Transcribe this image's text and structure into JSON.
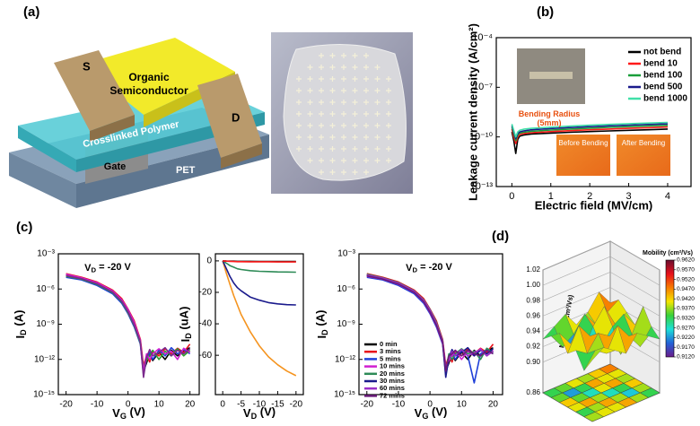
{
  "panel_labels": [
    "(a)",
    "(b)",
    "(c)",
    "(d)"
  ],
  "schematic": {
    "source": "S",
    "drain": "D",
    "semiconductor": [
      "Organic",
      "Semiconductor"
    ],
    "dielectric": "Crosslinked Polymer",
    "gate": "Gate",
    "substrate": "PET"
  },
  "chart_data": [
    {
      "type": "line",
      "xlabel": "Electric field (MV/cm)",
      "ylabel": "Leakage current density (A/cm²)",
      "ylog": true,
      "xlim": [
        -0.4,
        4.6
      ],
      "xticks": [
        0,
        1,
        2,
        3,
        4
      ],
      "ylim": [
        1e-13,
        0.0001
      ],
      "yticks": [
        {
          "value": 0.0001,
          "label": "10⁻⁴"
        },
        {
          "value": 1e-07,
          "label": "10⁻⁷"
        },
        {
          "value": 1e-10,
          "label": "10⁻¹⁰"
        },
        {
          "value": 1e-13,
          "label": "10⁻¹³"
        }
      ],
      "legend": "upper right",
      "inset_texts": {
        "radius": [
          "Bending Radius",
          "(5mm)"
        ],
        "before": "Before Bending",
        "after": "After Bending"
      },
      "x": [
        0,
        0.05,
        0.1,
        0.15,
        0.2,
        0.3,
        0.5,
        1,
        1.5,
        2,
        2.5,
        3,
        3.5,
        4
      ],
      "series": [
        {
          "name": "not bend",
          "color": "#000000",
          "values": [
            2e-10,
            6e-11,
            1e-11,
            7e-11,
            1.1e-10,
            1.3e-10,
            1.5e-10,
            1.7e-10,
            1.9e-10,
            2.1e-10,
            2.3e-10,
            2.5e-10,
            2.7e-10,
            3e-10
          ]
        },
        {
          "name": "bend 10",
          "color": "#ff1a1a",
          "values": [
            3e-10,
            1e-10,
            4e-11,
            1e-10,
            1.4e-10,
            1.6e-10,
            1.8e-10,
            2.1e-10,
            2.4e-10,
            2.7e-10,
            3e-10,
            3.3e-10,
            3.6e-10,
            4e-10
          ]
        },
        {
          "name": "bend 100",
          "color": "#1a9e3a",
          "values": [
            4e-10,
            1.5e-10,
            6e-11,
            1.3e-10,
            1.7e-10,
            1.9e-10,
            2.2e-10,
            2.6e-10,
            3e-10,
            3.4e-10,
            3.8e-10,
            4.2e-10,
            4.6e-10,
            5e-10
          ]
        },
        {
          "name": "bend 500",
          "color": "#1a1a8c",
          "values": [
            5e-10,
            2e-10,
            8e-11,
            1.6e-10,
            2e-10,
            2.3e-10,
            2.7e-10,
            3.2e-10,
            3.7e-10,
            4.2e-10,
            4.7e-10,
            5.2e-10,
            5.7e-10,
            6.2e-10
          ]
        },
        {
          "name": "bend 1000",
          "color": "#40e0a8",
          "values": [
            6e-10,
            2.5e-10,
            1e-10,
            2e-10,
            2.5e-10,
            2.9e-10,
            3.3e-10,
            3.9e-10,
            4.5e-10,
            5.1e-10,
            5.7e-10,
            6.3e-10,
            6.9e-10,
            7.5e-10
          ]
        }
      ]
    },
    {
      "type": "line",
      "xlabel": [
        "V",
        "G",
        " (V)"
      ],
      "ylabel": [
        "I",
        "D",
        " (A)"
      ],
      "annotation": [
        "V",
        "D",
        " = -20 V"
      ],
      "ylog": true,
      "xlim": [
        -22.5,
        23
      ],
      "xticks": [
        -20,
        -10,
        0,
        10,
        20
      ],
      "ylim": [
        1e-15,
        0.001
      ],
      "yticks": [
        {
          "value": 0.001,
          "label": "10⁻³"
        },
        {
          "value": 1e-06,
          "label": "10⁻⁶"
        },
        {
          "value": 1e-09,
          "label": "10⁻⁹"
        },
        {
          "value": 1e-12,
          "label": "10⁻¹²"
        },
        {
          "value": 1e-15,
          "label": "10⁻¹⁵"
        }
      ],
      "x": [
        -20,
        -15,
        -10,
        -5,
        -2,
        0,
        2,
        4,
        5,
        6,
        7,
        8,
        10,
        12,
        14,
        16,
        18,
        20
      ],
      "series": [
        {
          "color": "#000000",
          "values": [
            1.5e-05,
            8e-06,
            3e-06,
            6e-07,
            1e-07,
            1.5e-08,
            1e-09,
            3e-11,
            1e-13,
            5e-13,
            3e-12,
            8e-13,
            4e-12,
            1e-12,
            6e-12,
            2e-12,
            5e-12,
            1e-11
          ]
        },
        {
          "color": "#e8101a",
          "values": [
            2e-05,
            1e-05,
            4e-06,
            8e-07,
            1.5e-07,
            2e-08,
            2e-09,
            5e-11,
            3e-13,
            2e-12,
            6e-13,
            5e-12,
            2e-12,
            8e-12,
            3e-12,
            9e-12,
            4e-12,
            2e-11
          ]
        },
        {
          "color": "#1f3fd8",
          "values": [
            1e-05,
            6e-06,
            2e-06,
            4e-07,
            6e-08,
            8e-09,
            6e-10,
            2e-11,
            5e-14,
            1e-12,
            4e-12,
            1e-12,
            6e-12,
            2e-12,
            1e-11,
            3e-12,
            7e-12,
            3e-12
          ]
        },
        {
          "color": "#2ca02c",
          "values": [
            1.2e-05,
            7e-06,
            2.5e-06,
            5e-07,
            8e-08,
            1e-08,
            8e-10,
            2.5e-11,
            2e-13,
            8e-13,
            2e-12,
            6e-12,
            1e-12,
            5e-12,
            2e-12,
            8e-12,
            2e-12,
            6e-12
          ]
        },
        {
          "color": "#d01fd0",
          "values": [
            1.8e-05,
            9e-06,
            3.5e-06,
            7e-07,
            1.2e-07,
            1.8e-08,
            1.5e-09,
            4e-11,
            1e-13,
            3e-12,
            1e-12,
            3e-12,
            8e-12,
            3e-12,
            5e-12,
            1e-12,
            9e-12,
            4e-12
          ]
        },
        {
          "color": "#7b2a8c",
          "values": [
            1.4e-05,
            7.5e-06,
            2.8e-06,
            5.5e-07,
            9e-08,
            1.2e-08,
            9e-10,
            3e-11,
            3e-14,
            1.5e-12,
            7e-12,
            2e-12,
            4e-12,
            1e-11,
            2e-12,
            6e-12,
            3e-12,
            8e-12
          ]
        }
      ]
    },
    {
      "type": "line",
      "xlabel": [
        "V",
        "D",
        " (V)"
      ],
      "ylabel": [
        "I",
        "D",
        " (uA)"
      ],
      "ylog": false,
      "xlim": [
        2,
        -22
      ],
      "xticks": [
        0,
        -5,
        -10,
        -15,
        -20
      ],
      "ylim": [
        -85,
        4.5
      ],
      "yticks": [
        0,
        -20,
        -40,
        -60
      ],
      "x": [
        0,
        -1,
        -2,
        -3,
        -4,
        -5,
        -7.5,
        -10,
        -12.5,
        -15,
        -17.5,
        -20
      ],
      "series": [
        {
          "color": "#f5941f",
          "values": [
            0,
            -8,
            -15,
            -22,
            -28,
            -34,
            -45,
            -54,
            -61,
            -66,
            -70,
            -73
          ]
        },
        {
          "color": "#1a1a8c",
          "values": [
            0,
            -5,
            -10,
            -14,
            -17,
            -19,
            -23,
            -25,
            -26.5,
            -27.3,
            -27.8,
            -28
          ]
        },
        {
          "color": "#2e8b57",
          "values": [
            0,
            -1.5,
            -3,
            -4,
            -5,
            -5.5,
            -6.2,
            -6.6,
            -6.8,
            -7,
            -7.1,
            -7.2
          ]
        },
        {
          "color": "#000000",
          "values": [
            0,
            -0.1,
            -0.2,
            -0.2,
            -0.3,
            -0.3,
            -0.3,
            -0.4,
            -0.4,
            -0.4,
            -0.4,
            -0.4
          ]
        },
        {
          "color": "#ff1a1a",
          "values": [
            0,
            -0.2,
            -0.3,
            -0.4,
            -0.5,
            -0.5,
            -0.6,
            -0.6,
            -0.6,
            -0.7,
            -0.7,
            -0.7
          ]
        }
      ]
    },
    {
      "type": "line",
      "xlabel": [
        "V",
        "G",
        " (V)"
      ],
      "ylabel": [
        "I",
        "D",
        " (A)"
      ],
      "annotation": [
        "V",
        "D",
        " = -20 V"
      ],
      "ylog": true,
      "xlim": [
        -22.5,
        23
      ],
      "xticks": [
        -20,
        -10,
        0,
        10,
        20
      ],
      "ylim": [
        1e-15,
        0.001
      ],
      "yticks": [
        {
          "value": 0.001,
          "label": "10⁻³"
        },
        {
          "value": 1e-06,
          "label": "10⁻⁶"
        },
        {
          "value": 1e-09,
          "label": "10⁻⁹"
        },
        {
          "value": 1e-12,
          "label": "10⁻¹²"
        },
        {
          "value": 1e-15,
          "label": "10⁻¹⁵"
        }
      ],
      "legend": "lower left",
      "x": [
        -20,
        -15,
        -10,
        -5,
        -2,
        0,
        2,
        4,
        5,
        6,
        7,
        8,
        10,
        12,
        14,
        16,
        18,
        20
      ],
      "series": [
        {
          "name": "0 min",
          "color": "#000000",
          "values": [
            1.5e-05,
            8e-06,
            3e-06,
            6e-07,
            1e-07,
            1.5e-08,
            1e-09,
            3e-11,
            1e-13,
            5e-13,
            3e-12,
            8e-13,
            4e-12,
            1e-12,
            6e-12,
            2e-12,
            5e-12,
            1e-11
          ]
        },
        {
          "name": "3 mins",
          "color": "#e8101a",
          "values": [
            2e-05,
            1e-05,
            4e-06,
            8e-07,
            1.5e-07,
            2e-08,
            2e-09,
            5e-11,
            3e-13,
            2e-12,
            6e-13,
            5e-12,
            2e-12,
            8e-12,
            3e-12,
            9e-12,
            4e-12,
            2e-11
          ]
        },
        {
          "name": "5 mins",
          "color": "#1f3fd8",
          "values": [
            1e-05,
            6e-06,
            2e-06,
            4e-07,
            6e-08,
            8e-09,
            6e-10,
            2e-11,
            5e-14,
            1e-12,
            4e-12,
            1e-12,
            6e-12,
            2e-12,
            1e-14,
            3e-12,
            7e-12,
            3e-12
          ]
        },
        {
          "name": "10 mins",
          "color": "#d01fd0",
          "values": [
            1.2e-05,
            7e-06,
            2.5e-06,
            5e-07,
            8e-08,
            1e-08,
            8e-10,
            2.5e-11,
            2e-13,
            8e-13,
            2e-12,
            6e-12,
            1e-12,
            5e-12,
            2e-12,
            8e-12,
            2e-12,
            6e-12
          ]
        },
        {
          "name": "20 mins",
          "color": "#2e8b57",
          "values": [
            1.8e-05,
            9e-06,
            3.5e-06,
            7e-07,
            1.2e-07,
            1.8e-08,
            1.5e-09,
            4e-11,
            1e-13,
            3e-12,
            1e-12,
            3e-12,
            8e-12,
            3e-12,
            5e-12,
            1e-12,
            9e-12,
            4e-12
          ]
        },
        {
          "name": "30 mins",
          "color": "#1a1a8c",
          "values": [
            1.4e-05,
            7.5e-06,
            2.8e-06,
            5.5e-07,
            9e-08,
            1.2e-08,
            9e-10,
            3e-11,
            3e-14,
            1.5e-12,
            7e-12,
            2e-12,
            4e-12,
            1e-11,
            2e-12,
            6e-12,
            3e-12,
            8e-12
          ]
        },
        {
          "name": "60 mins",
          "color": "#9b30c8",
          "values": [
            1.6e-05,
            8.5e-06,
            3.2e-06,
            6.5e-07,
            1.1e-07,
            1.6e-08,
            1.2e-09,
            3.5e-11,
            2e-13,
            1e-12,
            5e-12,
            2e-12,
            7e-12,
            2e-12,
            4e-12,
            7e-12,
            2e-12,
            5e-12
          ]
        },
        {
          "name": "72 mins",
          "color": "#6a1b7a",
          "values": [
            1.3e-05,
            7e-06,
            2.6e-06,
            5.2e-07,
            8.5e-08,
            1.1e-08,
            8.5e-10,
            2.8e-11,
            1e-13,
            2e-12,
            3e-12,
            6e-12,
            2e-12,
            6e-12,
            3e-12,
            2e-12,
            6e-12,
            3e-12
          ]
        }
      ]
    },
    {
      "type": "surface3d",
      "zlabel": "Mobility (cm²/Vs)",
      "colorbar_title": "Mobility (cm²/Vs)",
      "zlim": [
        0.86,
        1.02
      ],
      "zticks": [
        1.02,
        {
          "value": 1.0,
          "label": "1.00"
        },
        0.98,
        0.96,
        0.94,
        0.92,
        {
          "value": 0.9,
          "label": "0.90"
        },
        0.86
      ],
      "clim": [
        0.912,
        0.962
      ],
      "cticks": [
        {
          "value": 0.962,
          "label": "0.9620"
        },
        {
          "value": 0.957,
          "label": "0.9570"
        },
        {
          "value": 0.952,
          "label": "0.9520"
        },
        {
          "value": 0.947,
          "label": "0.9470"
        },
        {
          "value": 0.942,
          "label": "0.9420"
        },
        {
          "value": 0.937,
          "label": "0.9370"
        },
        {
          "value": 0.932,
          "label": "0.9320"
        },
        {
          "value": 0.927,
          "label": "0.9270"
        },
        {
          "value": 0.922,
          "label": "0.9220"
        },
        {
          "value": 0.917,
          "label": "0.9170"
        },
        {
          "value": 0.912,
          "label": "0.9120"
        }
      ],
      "colormap": [
        "#6b1c8c",
        "#2262d8",
        "#1ce0d8",
        "#38d13a",
        "#f5e600",
        "#f77d00",
        "#e8101a",
        "#6a0d2e"
      ],
      "z": [
        [
          0.93,
          0.94,
          0.95,
          0.93,
          0.94,
          0.96,
          0.94
        ],
        [
          0.94,
          0.92,
          0.93,
          0.95,
          0.93,
          0.94,
          0.95
        ],
        [
          0.95,
          0.93,
          0.91,
          0.94,
          0.96,
          0.93,
          0.94
        ],
        [
          0.93,
          0.96,
          0.94,
          0.92,
          0.94,
          0.95,
          0.93
        ],
        [
          0.94,
          0.93,
          0.95,
          0.94,
          0.91,
          0.93,
          0.96
        ],
        [
          0.92,
          0.94,
          0.93,
          0.96,
          0.94,
          0.92,
          0.94
        ],
        [
          0.94,
          0.95,
          0.94,
          0.93,
          0.95,
          0.94,
          0.93
        ]
      ]
    }
  ]
}
